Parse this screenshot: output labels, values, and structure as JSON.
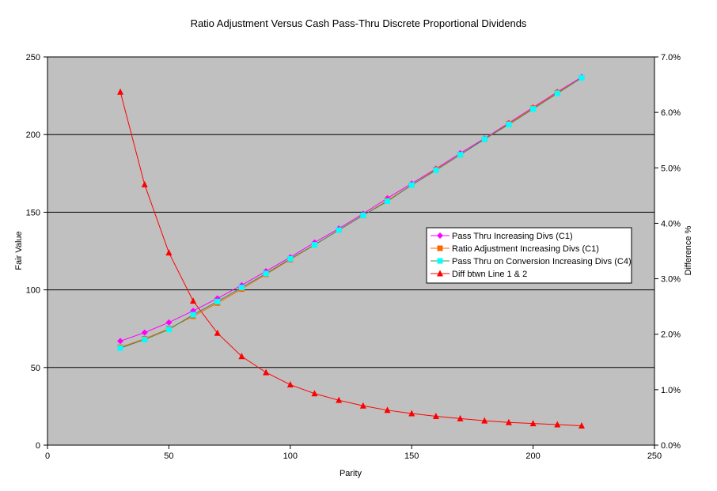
{
  "chart_data": {
    "type": "line",
    "title": "Ratio Adjustment Versus Cash Pass-Thru Discrete Proportional Dividends",
    "xlabel": "Parity",
    "ylabel": "Fair Value",
    "y2label": "Difference %",
    "xlim": [
      0,
      250
    ],
    "ylim": [
      0,
      250
    ],
    "y2lim": [
      0,
      0.07
    ],
    "x_ticks": [
      "0",
      "50",
      "100",
      "150",
      "200",
      "250"
    ],
    "y_ticks": [
      "0",
      "50",
      "100",
      "150",
      "200",
      "250"
    ],
    "y2_ticks": [
      "0.0%",
      "1.0%",
      "2.0%",
      "3.0%",
      "4.0%",
      "5.0%",
      "6.0%",
      "7.0%"
    ],
    "grid": "horizontal major gridlines",
    "legend_position": "right-center",
    "plot_background": "#c0c0c0",
    "x": [
      30,
      40,
      50,
      60,
      70,
      80,
      90,
      100,
      110,
      120,
      130,
      140,
      150,
      160,
      170,
      180,
      190,
      200,
      210,
      220
    ],
    "series": [
      {
        "name": "Pass Thru Increasing Divs (C1)",
        "axis": "left",
        "color": "#ff00ff",
        "marker": "diamond",
        "values": [
          67,
          72.5,
          79,
          86.5,
          94.5,
          103,
          112,
          121,
          130.5,
          139.5,
          149,
          159,
          168.5,
          178,
          188,
          197.5,
          207.5,
          217.5,
          227.5,
          237
        ]
      },
      {
        "name": "Ratio Adjustment Increasing Divs (C1)",
        "axis": "left",
        "color": "#ff6600",
        "marker": "square",
        "values": [
          63,
          68.5,
          75,
          83,
          91.5,
          100.5,
          110,
          119.5,
          129,
          138.5,
          148,
          157.5,
          167.5,
          177.5,
          187,
          197,
          207,
          217,
          227,
          236.5
        ]
      },
      {
        "name": "Pass Thru on Conversion Increasing Divs (C4)",
        "axis": "left",
        "color": "#00ffff",
        "line_color": "#3c8c50",
        "marker": "square",
        "values": [
          62.5,
          68,
          74.5,
          84,
          92.5,
          101.5,
          110.5,
          120,
          129,
          138.5,
          148,
          157,
          167.5,
          177,
          187,
          197,
          206.5,
          216.5,
          226.5,
          236.5
        ]
      },
      {
        "name": "Diff btwn Line 1 & 2",
        "axis": "right",
        "color": "#ff0000",
        "marker": "triangle",
        "values": [
          0.0637,
          0.047,
          0.0347,
          0.026,
          0.0202,
          0.016,
          0.0131,
          0.0109,
          0.0093,
          0.0081,
          0.0071,
          0.0063,
          0.0057,
          0.0052,
          0.0048,
          0.0044,
          0.0041,
          0.0039,
          0.0037,
          0.0035
        ]
      }
    ]
  }
}
